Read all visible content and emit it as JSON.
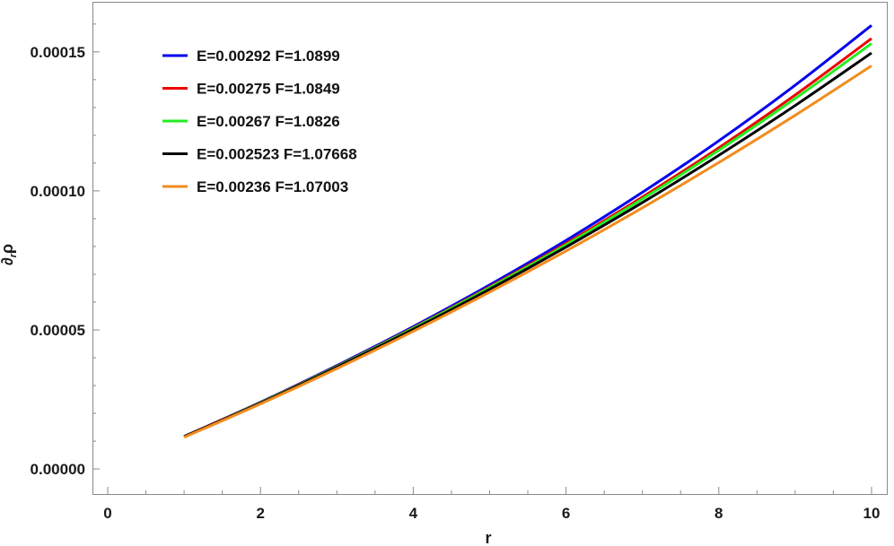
{
  "chart_data": {
    "type": "line",
    "title": "",
    "xlabel": "r",
    "ylabel": "∂rρ",
    "ylabel_main": "∂",
    "ylabel_sub": "r",
    "ylabel_end": "ρ",
    "xlim": [
      -0.2,
      10.2
    ],
    "ylim": [
      -9e-06,
      0.000168
    ],
    "grid": false,
    "legend_position": "top-left",
    "x_ticks": [
      {
        "value": 0,
        "label": "0"
      },
      {
        "value": 2,
        "label": "2"
      },
      {
        "value": 4,
        "label": "4"
      },
      {
        "value": 6,
        "label": "6"
      },
      {
        "value": 8,
        "label": "8"
      },
      {
        "value": 10,
        "label": "10"
      }
    ],
    "y_ticks": [
      {
        "value": 0,
        "label": "0.00000"
      },
      {
        "value": 5e-05,
        "label": "0.00005"
      },
      {
        "value": 0.0001,
        "label": "0.00010"
      },
      {
        "value": 0.00015,
        "label": "0.00015"
      }
    ],
    "x": [
      1,
      2,
      3,
      4,
      5,
      6,
      7,
      8,
      9,
      10
    ],
    "series": [
      {
        "name": "E=0.00292 F=1.0899",
        "color": "#0000ee",
        "values": [
          1.17e-05,
          2.4e-05,
          3.72e-05,
          5.12e-05,
          6.62e-05,
          8.22e-05,
          9.95e-05,
          0.000118,
          0.000138,
          0.0001595
        ]
      },
      {
        "name": "E=0.00275 F=1.0849",
        "color": "#ee0000",
        "values": [
          1.17e-05,
          2.39e-05,
          3.69e-05,
          5.08e-05,
          6.55e-05,
          8.11e-05,
          9.78e-05,
          0.0001155,
          0.0001345,
          0.0001548
        ]
      },
      {
        "name": "E=0.00267 F=1.0826",
        "color": "#22ee22",
        "values": [
          1.16e-05,
          2.38e-05,
          3.68e-05,
          5.06e-05,
          6.52e-05,
          8.06e-05,
          9.71e-05,
          0.0001146,
          0.0001332,
          0.000153
        ]
      },
      {
        "name": "E=0.002523 F=1.07668",
        "color": "#000000",
        "values": [
          1.16e-05,
          2.37e-05,
          3.66e-05,
          5.02e-05,
          6.46e-05,
          7.98e-05,
          9.58e-05,
          0.0001128,
          0.0001307,
          0.0001496
        ]
      },
      {
        "name": "E=0.00236 F=1.07003",
        "color": "#f28c1e",
        "values": [
          1.14e-05,
          2.34e-05,
          3.61e-05,
          4.95e-05,
          6.36e-05,
          7.84e-05,
          9.39e-05,
          0.0001102,
          0.0001272,
          0.000145
        ]
      }
    ]
  }
}
